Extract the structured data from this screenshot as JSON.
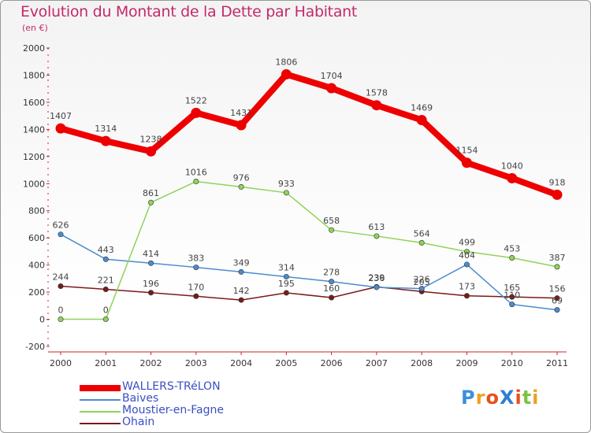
{
  "chart_data": {
    "type": "line",
    "title": "Evolution du Montant de la Dette par Habitant",
    "subtitle": "(en €)",
    "x": [
      "2000",
      "2001",
      "2002",
      "2003",
      "2004",
      "2005",
      "2006",
      "2007",
      "2008",
      "2009",
      "2010",
      "2011"
    ],
    "ylim": [
      -200,
      2000
    ],
    "yticks": [
      -200,
      0,
      200,
      400,
      600,
      800,
      1000,
      1200,
      1400,
      1600,
      1800,
      2000
    ],
    "grid": false,
    "legend_position": "bottom-left",
    "series": [
      {
        "name": "Ohain",
        "color": "#7a1a1a",
        "values": [
          244,
          221,
          196,
          170,
          142,
          195,
          160,
          239,
          205,
          173,
          165,
          156
        ],
        "labels": [
          "244",
          "221",
          "196",
          "170",
          "142",
          "195",
          "160",
          "239",
          "205",
          "173",
          "165",
          "156"
        ]
      },
      {
        "name": "Baives",
        "color": "#4a8cd0",
        "values": [
          626,
          443,
          414,
          383,
          349,
          314,
          278,
          236,
          226,
          404,
          110,
          69
        ],
        "labels": [
          "626",
          "443",
          "414",
          "383",
          "349",
          "314",
          "278",
          "236",
          "226",
          "404",
          "110",
          "69"
        ]
      },
      {
        "name": "Moustier-en-Fagne",
        "color": "#8fd35a",
        "values": [
          0,
          0,
          861,
          1016,
          976,
          933,
          658,
          613,
          564,
          499,
          453,
          387
        ],
        "labels": [
          "0",
          "0",
          "861",
          "1016",
          "976",
          "933",
          "658",
          "613",
          "564",
          "499",
          "453",
          "387"
        ]
      },
      {
        "name": "WALLERS-TRéLON",
        "color": "#ee0000",
        "values": [
          1407,
          1314,
          1238,
          1522,
          1431,
          1806,
          1704,
          1578,
          1469,
          1154,
          1040,
          918
        ],
        "labels": [
          "1407",
          "1314",
          "1238",
          "1522",
          "1431",
          "1806",
          "1704",
          "1578",
          "1469",
          "1154",
          "1040",
          "918"
        ]
      }
    ]
  },
  "legend": {
    "items": [
      {
        "label": "WALLERS-TRéLON",
        "color": "#ee0000"
      },
      {
        "label": "Baives",
        "color": "#4a8cd0"
      },
      {
        "label": "Moustier-en-Fagne",
        "color": "#8fd35a"
      },
      {
        "label": "Ohain",
        "color": "#7a1a1a"
      }
    ]
  },
  "logo": {
    "text": "ProXiti",
    "colors": [
      "#3b8fd9",
      "#f0a020",
      "#e8501c",
      "#2f7fd0",
      "#e8501c",
      "#7cc242",
      "#f0a020"
    ]
  }
}
